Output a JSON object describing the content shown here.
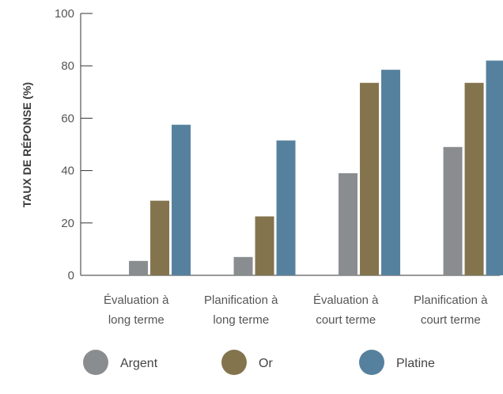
{
  "chart_data": {
    "type": "bar",
    "ylabel": "TAUX DE RÉPONSE (%)",
    "xlabel": "",
    "ylim": [
      0,
      100
    ],
    "yticks": [
      0,
      20,
      40,
      60,
      80,
      100
    ],
    "grid": false,
    "legend_position": "bottom",
    "categories": [
      [
        "Évaluation à",
        "long terme"
      ],
      [
        "Planification à",
        "long terme"
      ],
      [
        "Évaluation à",
        "court terme"
      ],
      [
        "Planification à",
        "court terme"
      ]
    ],
    "series": [
      {
        "name": "Argent",
        "color": "#8a8d8f",
        "values": [
          5.5,
          7,
          39,
          49
        ]
      },
      {
        "name": "Or",
        "color": "#83744d",
        "values": [
          28.5,
          22.5,
          73.5,
          73.5
        ]
      },
      {
        "name": "Platine",
        "color": "#56819e",
        "values": [
          57.5,
          51.5,
          78.5,
          82
        ]
      }
    ]
  }
}
